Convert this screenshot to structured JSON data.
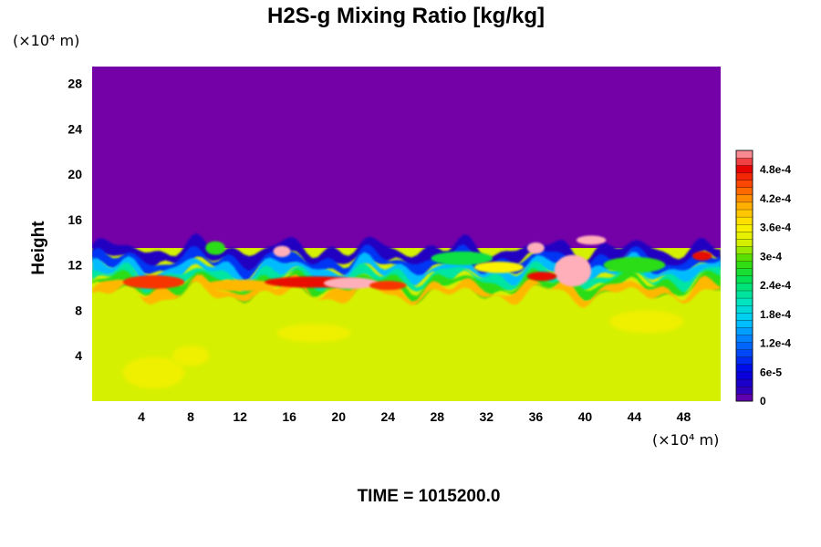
{
  "chart_data": {
    "type": "heatmap",
    "title": "H2S-g Mixing Ratio [kg/kg]",
    "ylabel": "Height",
    "x_scale_label": "(×10⁴ m)",
    "y_scale_label": "(×10⁴ m)",
    "x_ticks": [
      4,
      8,
      12,
      16,
      20,
      24,
      28,
      32,
      36,
      40,
      44,
      48
    ],
    "y_ticks": [
      4,
      8,
      12,
      16,
      20,
      24,
      28
    ],
    "xlim": [
      0,
      51
    ],
    "ylim": [
      0,
      29.5
    ],
    "colorbar": {
      "labels": [
        "0",
        "6e-5",
        "1.2e-4",
        "1.8e-4",
        "2.4e-4",
        "3e-4",
        "3.6e-4",
        "4.2e-4",
        "4.8e-4"
      ],
      "min": 0,
      "max": 0.00052
    },
    "footer": "TIME = 1015200.0",
    "regions": {
      "upper_value": 0,
      "lower_value": 0.00033,
      "interface_height_approx": 13.5,
      "peak_value": 0.00052
    }
  }
}
